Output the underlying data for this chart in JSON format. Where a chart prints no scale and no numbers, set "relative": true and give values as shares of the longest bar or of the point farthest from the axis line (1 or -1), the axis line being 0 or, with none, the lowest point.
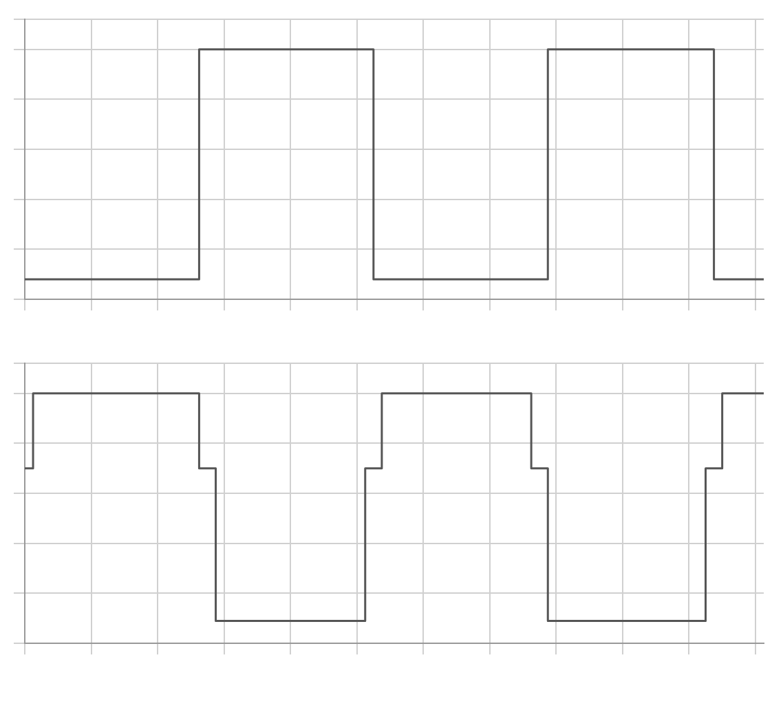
{
  "chart_data": [
    {
      "type": "step",
      "relative": true,
      "grid": true,
      "color": "#555555",
      "categories": [
        null,
        null,
        null,
        null,
        null,
        null,
        null,
        null,
        null,
        null,
        null,
        null,
        null,
        null,
        null,
        null,
        null,
        null,
        null,
        null,
        null,
        null,
        null,
        null,
        null,
        null,
        null,
        null,
        null,
        null,
        null,
        null,
        null,
        null,
        null,
        null,
        null,
        null,
        null,
        null,
        null,
        null,
        null,
        null,
        null,
        null,
        null,
        null,
        null,
        null,
        null,
        null,
        null,
        null,
        null,
        null,
        null,
        null,
        null,
        null,
        null,
        null,
        null,
        null,
        null,
        null,
        null,
        null,
        null,
        null,
        null,
        null,
        null,
        null,
        null,
        null,
        null,
        null,
        null,
        null,
        null,
        null,
        null,
        null,
        null,
        null,
        null,
        null,
        null,
        null
      ],
      "values": [
        0.08,
        0.08,
        0.08,
        0.08,
        0.08,
        0.08,
        0.08,
        0.08,
        0.08,
        0.08,
        0.08,
        0.08,
        0.08,
        0.08,
        0.08,
        0.08,
        0.08,
        0.08,
        0.08,
        0.08,
        0.08,
        0.08,
        1,
        1,
        1,
        1,
        1,
        1,
        1,
        1,
        1,
        1,
        1,
        1,
        1,
        1,
        1,
        1,
        1,
        1,
        1,
        1,
        1,
        0.08,
        0.08,
        0.08,
        0.08,
        0.08,
        0.08,
        0.08,
        0.08,
        0.08,
        0.08,
        0.08,
        0.08,
        0.08,
        0.08,
        0.08,
        0.08,
        0.08,
        0.08,
        0.08,
        0.08,
        0.08,
        1,
        1,
        1,
        1,
        1,
        1,
        1,
        1,
        1,
        1,
        1,
        1,
        1,
        1,
        1,
        1,
        1,
        1,
        1,
        1,
        0.08,
        0.08,
        0.08,
        0.08,
        0.08,
        0.08
      ]
    },
    {
      "type": "step",
      "relative": true,
      "grid": true,
      "color": "#555555",
      "categories": [
        null,
        null,
        null,
        null,
        null,
        null,
        null,
        null,
        null,
        null,
        null,
        null,
        null,
        null,
        null,
        null,
        null,
        null,
        null,
        null,
        null,
        null,
        null,
        null,
        null,
        null,
        null,
        null,
        null,
        null,
        null,
        null,
        null,
        null,
        null,
        null,
        null,
        null,
        null,
        null,
        null,
        null,
        null,
        null,
        null,
        null,
        null,
        null,
        null,
        null,
        null,
        null,
        null,
        null,
        null,
        null,
        null,
        null,
        null,
        null,
        null,
        null,
        null,
        null,
        null,
        null,
        null,
        null,
        null,
        null,
        null,
        null,
        null,
        null,
        null,
        null,
        null,
        null,
        null,
        null,
        null,
        null,
        null,
        null,
        null,
        null,
        null,
        null,
        null,
        null
      ],
      "values": [
        0.7,
        0.7,
        1,
        1,
        1,
        1,
        1,
        1,
        1,
        1,
        1,
        1,
        1,
        1,
        1,
        1,
        1,
        1,
        1,
        1,
        1,
        1,
        0.7,
        0.7,
        0.09,
        0.09,
        0.09,
        0.09,
        0.09,
        0.09,
        0.09,
        0.09,
        0.09,
        0.09,
        0.09,
        0.09,
        0.09,
        0.09,
        0.09,
        0.09,
        0.09,
        0.09,
        0.7,
        0.7,
        1,
        1,
        1,
        1,
        1,
        1,
        1,
        1,
        1,
        1,
        1,
        1,
        1,
        1,
        1,
        1,
        1,
        1,
        0.7,
        0.7,
        0.09,
        0.09,
        0.09,
        0.09,
        0.09,
        0.09,
        0.09,
        0.09,
        0.09,
        0.09,
        0.09,
        0.09,
        0.09,
        0.09,
        0.09,
        0.09,
        0.09,
        0.09,
        0.09,
        0.7,
        0.7,
        1,
        1,
        1,
        1,
        1
      ]
    }
  ]
}
